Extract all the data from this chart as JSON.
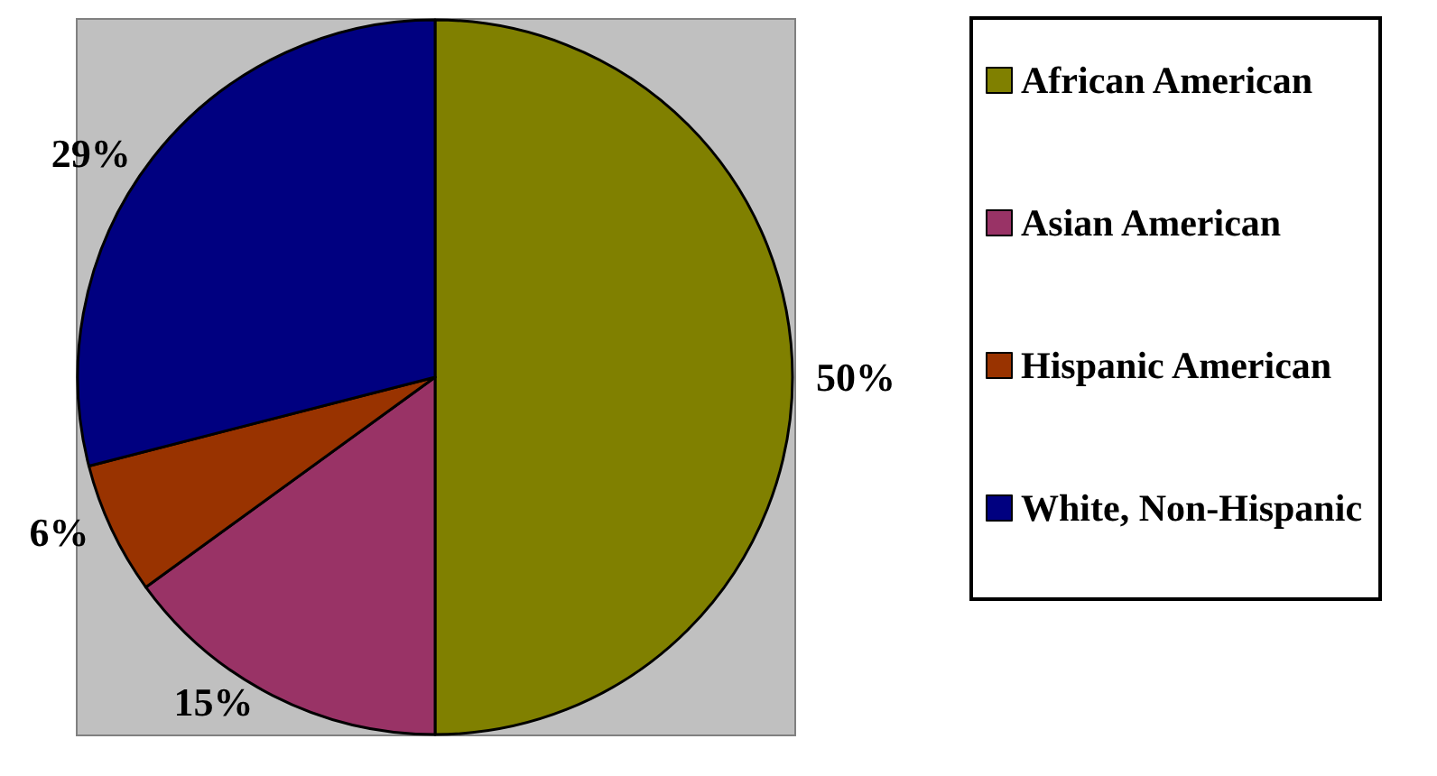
{
  "chart_data": {
    "type": "pie",
    "categories": [
      "African American",
      "Asian American",
      "Hispanic American",
      "White, Non-Hispanic"
    ],
    "values": [
      50,
      15,
      6,
      29
    ],
    "value_labels": [
      "50%",
      "15%",
      "6%",
      "29%"
    ],
    "colors": [
      "#808000",
      "#993366",
      "#993300",
      "#000080"
    ],
    "legend": "right"
  }
}
